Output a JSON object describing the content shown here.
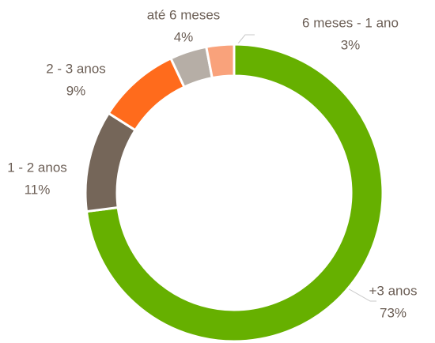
{
  "chart_data": {
    "type": "donut",
    "categories": [
      "+3 anos",
      "1 - 2 anos",
      "2 - 3 anos",
      "até 6 meses",
      "6 meses - 1 ano"
    ],
    "values": [
      73,
      11,
      9,
      4,
      3
    ],
    "value_labels": [
      "73%",
      "11%",
      "9%",
      "4%",
      "3%"
    ],
    "colors": [
      "#66b000",
      "#756659",
      "#ff6b1c",
      "#b6aea6",
      "#f9a27b"
    ]
  }
}
